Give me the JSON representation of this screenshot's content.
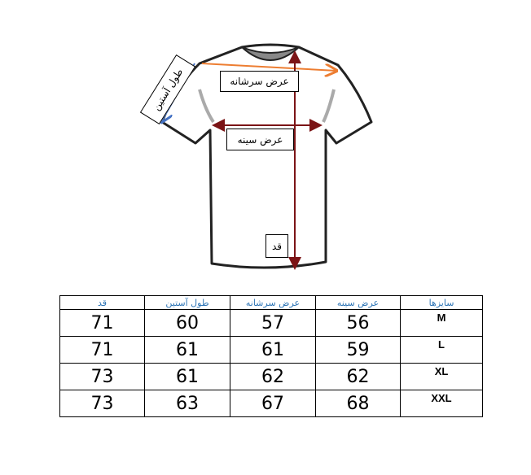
{
  "diagram": {
    "labels": {
      "shoulder_width": "عرض سرشانه",
      "chest_width": "عرض سینه",
      "length": "قد",
      "sleeve_length": "طول آستین"
    },
    "colors": {
      "shoulder_arrow": "#ed7d31",
      "chest_arrow": "#7b1416",
      "length_arrow": "#7b1416",
      "sleeve_arrow": "#4472c4",
      "header_text": "#2e75b6"
    }
  },
  "size_table": {
    "headers": [
      "قد",
      "طول آستین",
      "عرض سرشانه",
      "عرض سینه",
      "سایزها"
    ],
    "rows": [
      {
        "length": "71",
        "sleeve": "60",
        "shoulder": "57",
        "chest": "56",
        "size": "M"
      },
      {
        "length": "71",
        "sleeve": "61",
        "shoulder": "61",
        "chest": "59",
        "size": "L"
      },
      {
        "length": "73",
        "sleeve": "61",
        "shoulder": "62",
        "chest": "62",
        "size": "XL"
      },
      {
        "length": "73",
        "sleeve": "63",
        "shoulder": "67",
        "chest": "68",
        "size": "XXL"
      }
    ]
  }
}
